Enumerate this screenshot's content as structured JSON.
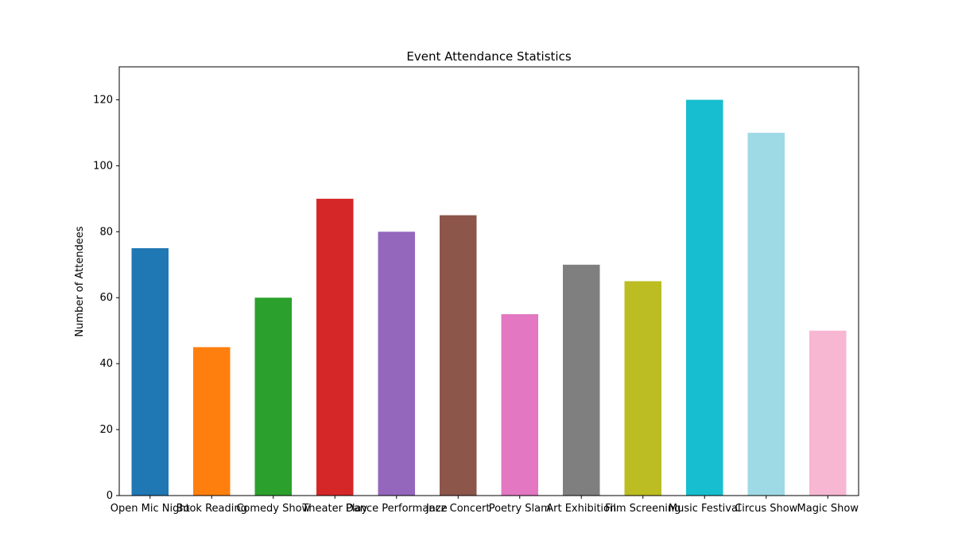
{
  "chart_data": {
    "type": "bar",
    "title": "Event Attendance Statistics",
    "xlabel": "",
    "ylabel": "Number of Attendees",
    "ylim": [
      0,
      130
    ],
    "yticks": [
      0,
      20,
      40,
      60,
      80,
      100,
      120
    ],
    "grid": false,
    "categories": [
      "Open Mic Night",
      "Book Reading",
      "Comedy Show",
      "Theater Play",
      "Dance Performance",
      "Jazz Concert",
      "Poetry Slam",
      "Art Exhibition",
      "Film Screening",
      "Music Festival",
      "Circus Show",
      "Magic Show"
    ],
    "values": [
      75,
      45,
      60,
      90,
      80,
      85,
      55,
      70,
      65,
      120,
      110,
      50
    ],
    "colors": [
      "#1f77b4",
      "#ff7f0e",
      "#2ca02c",
      "#d62728",
      "#9467bd",
      "#8c564b",
      "#e377c2",
      "#7f7f7f",
      "#bcbd22",
      "#17becf",
      "#9edae5",
      "#f7b6d2"
    ]
  }
}
